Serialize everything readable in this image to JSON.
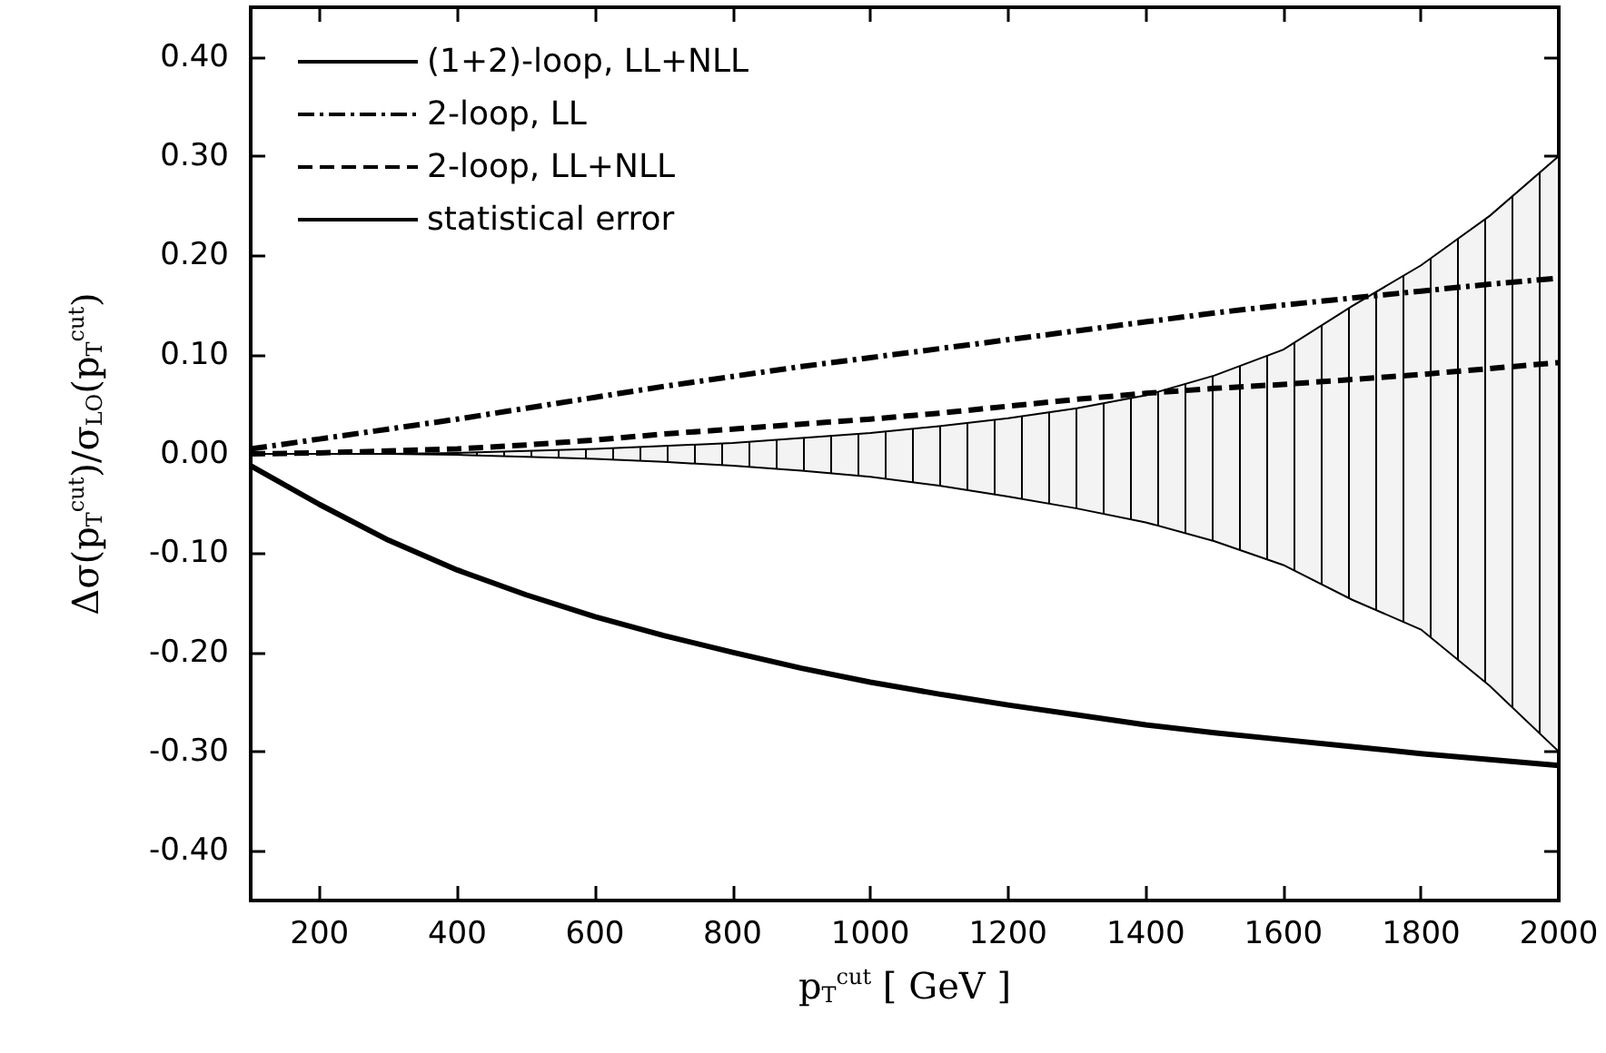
{
  "chart_data": {
    "type": "line",
    "xlabel": "p$_{T}$$^{cut}$ [ GeV ]",
    "ylabel": "Δσ(p$_{T}$$^{cut}$)/σ$_{LO}$(p$_{T}$$^{cut}$)",
    "x": [
      100,
      200,
      300,
      400,
      500,
      600,
      700,
      800,
      900,
      1000,
      1100,
      1200,
      1300,
      1400,
      1500,
      1600,
      1700,
      1800,
      1900,
      2000
    ],
    "series": [
      {
        "name": "(1+2)-loop, LL+NLL",
        "color": "#000000",
        "line_style": "solid",
        "values": [
          -0.012,
          -0.051,
          -0.087,
          -0.117,
          -0.142,
          -0.164,
          -0.183,
          -0.2,
          -0.216,
          -0.23,
          -0.242,
          -0.253,
          -0.263,
          -0.273,
          -0.281,
          -0.288,
          -0.295,
          -0.302,
          -0.308,
          -0.314
        ]
      },
      {
        "name": "2-loop, LL",
        "color": "#000000",
        "line_style": "dashdot",
        "values": [
          0.005,
          0.015,
          0.025,
          0.035,
          0.046,
          0.057,
          0.068,
          0.078,
          0.088,
          0.097,
          0.106,
          0.115,
          0.124,
          0.133,
          0.142,
          0.15,
          0.157,
          0.164,
          0.171,
          0.177
        ]
      },
      {
        "name": "2-loop, LL+NLL",
        "color": "#000000",
        "line_style": "dashed",
        "values": [
          0.0,
          0.001,
          0.003,
          0.005,
          0.009,
          0.014,
          0.02,
          0.025,
          0.03,
          0.035,
          0.041,
          0.048,
          0.055,
          0.061,
          0.066,
          0.07,
          0.075,
          0.08,
          0.086,
          0.092
        ]
      },
      {
        "name": "statistical error",
        "color": "#000000",
        "line_style": "solid",
        "values": [
          null,
          null,
          null,
          null,
          null,
          null,
          null,
          null,
          null,
          null,
          null,
          null,
          null,
          null,
          null,
          null,
          null,
          null,
          null,
          null
        ],
        "lower": [
          0.0,
          0.0,
          0.0,
          -0.001,
          -0.003,
          -0.005,
          -0.008,
          -0.012,
          -0.017,
          -0.023,
          -0.032,
          -0.043,
          -0.055,
          -0.069,
          -0.088,
          -0.112,
          -0.147,
          -0.177,
          -0.234,
          -0.3
        ],
        "upper": [
          0.0,
          0.0,
          0.0,
          0.001,
          0.003,
          0.005,
          0.008,
          0.011,
          0.016,
          0.021,
          0.028,
          0.036,
          0.046,
          0.059,
          0.079,
          0.105,
          0.149,
          0.19,
          0.24,
          0.3
        ]
      }
    ],
    "xlim": [
      100,
      2000
    ],
    "xticks": [
      200,
      400,
      600,
      800,
      1000,
      1200,
      1400,
      1600,
      1800,
      2000
    ],
    "ylim": [
      -0.45,
      0.45
    ],
    "yticks": [
      {
        "value": -0.4,
        "label": "-0.40"
      },
      {
        "value": -0.3,
        "label": "-0.30"
      },
      {
        "value": -0.2,
        "label": "-0.20"
      },
      {
        "value": -0.1,
        "label": "-0.10"
      },
      {
        "value": 0,
        "label": "0.00"
      },
      {
        "value": 0.1,
        "label": "0.10"
      },
      {
        "value": 0.2,
        "label": "0.20"
      },
      {
        "value": 0.3,
        "label": "0.30"
      },
      {
        "value": 0.4,
        "label": "0.40"
      }
    ],
    "grid": false,
    "legend": "top left",
    "marker": "none"
  }
}
